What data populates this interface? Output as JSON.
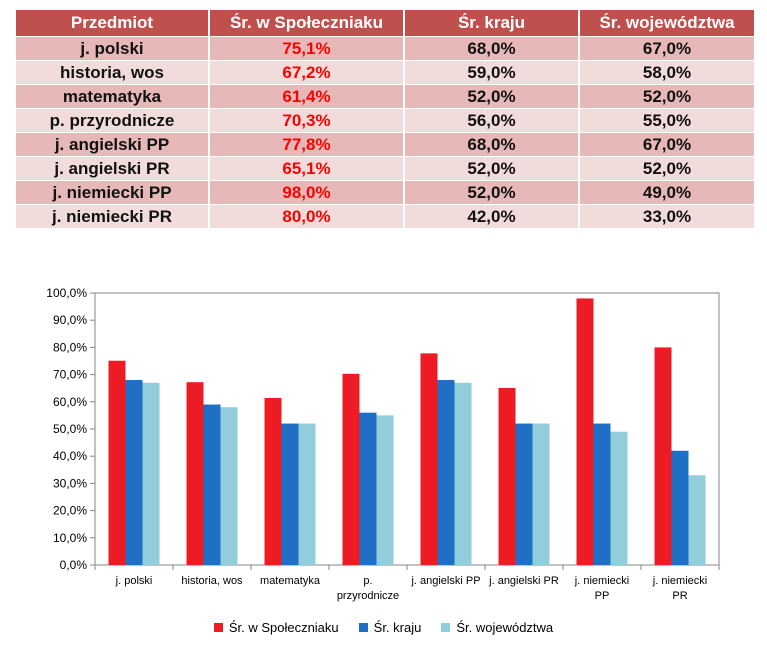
{
  "table": {
    "headers": [
      "Przedmiot",
      "Śr. w Społeczniaku",
      "Śr. kraju",
      "Śr. województwa"
    ],
    "rows": [
      [
        "j. polski",
        "75,1%",
        "68,0%",
        "67,0%"
      ],
      [
        "historia, wos",
        "67,2%",
        "59,0%",
        "58,0%"
      ],
      [
        "matematyka",
        "61,4%",
        "52,0%",
        "52,0%"
      ],
      [
        "p. przyrodnicze",
        "70,3%",
        "56,0%",
        "55,0%"
      ],
      [
        "j. angielski PP",
        "77,8%",
        "68,0%",
        "67,0%"
      ],
      [
        "j. angielski PR",
        "65,1%",
        "52,0%",
        "52,0%"
      ],
      [
        "j. niemiecki PP",
        "98,0%",
        "52,0%",
        "49,0%"
      ],
      [
        "j. niemiecki PR",
        "80,0%",
        "42,0%",
        "33,0%"
      ]
    ]
  },
  "chart_data": {
    "type": "bar",
    "categories": [
      "j. polski",
      "historia, wos",
      "matematyka",
      "p. przyrodnicze",
      "j. angielski PP",
      "j. angielski PR",
      "j. niemiecki PP",
      "j. niemiecki PR"
    ],
    "category_label_lines": [
      [
        "j. polski"
      ],
      [
        "historia, wos"
      ],
      [
        "matematyka"
      ],
      [
        "p.",
        "przyrodnicze"
      ],
      [
        "j. angielski PP"
      ],
      [
        "j. angielski PR"
      ],
      [
        "j. niemiecki",
        "PP"
      ],
      [
        "j. niemiecki",
        "PR"
      ]
    ],
    "series": [
      {
        "name": "Śr. w Społeczniaku",
        "values": [
          75.1,
          67.2,
          61.4,
          70.3,
          77.8,
          65.1,
          98.0,
          80.0
        ],
        "color": "#ed1c24"
      },
      {
        "name": "Śr. kraju",
        "values": [
          68.0,
          59.0,
          52.0,
          56.0,
          68.0,
          52.0,
          52.0,
          42.0
        ],
        "color": "#1f6fc5"
      },
      {
        "name": "Śr. województwa",
        "values": [
          67.0,
          58.0,
          52.0,
          55.0,
          67.0,
          52.0,
          49.0,
          33.0
        ],
        "color": "#92cddc"
      }
    ],
    "ylim": [
      0,
      100
    ],
    "yticks": [
      "0,0%",
      "10,0%",
      "20,0%",
      "30,0%",
      "40,0%",
      "50,0%",
      "60,0%",
      "70,0%",
      "80,0%",
      "90,0%",
      "100,0%"
    ],
    "grid": false,
    "legend": "bottom"
  }
}
